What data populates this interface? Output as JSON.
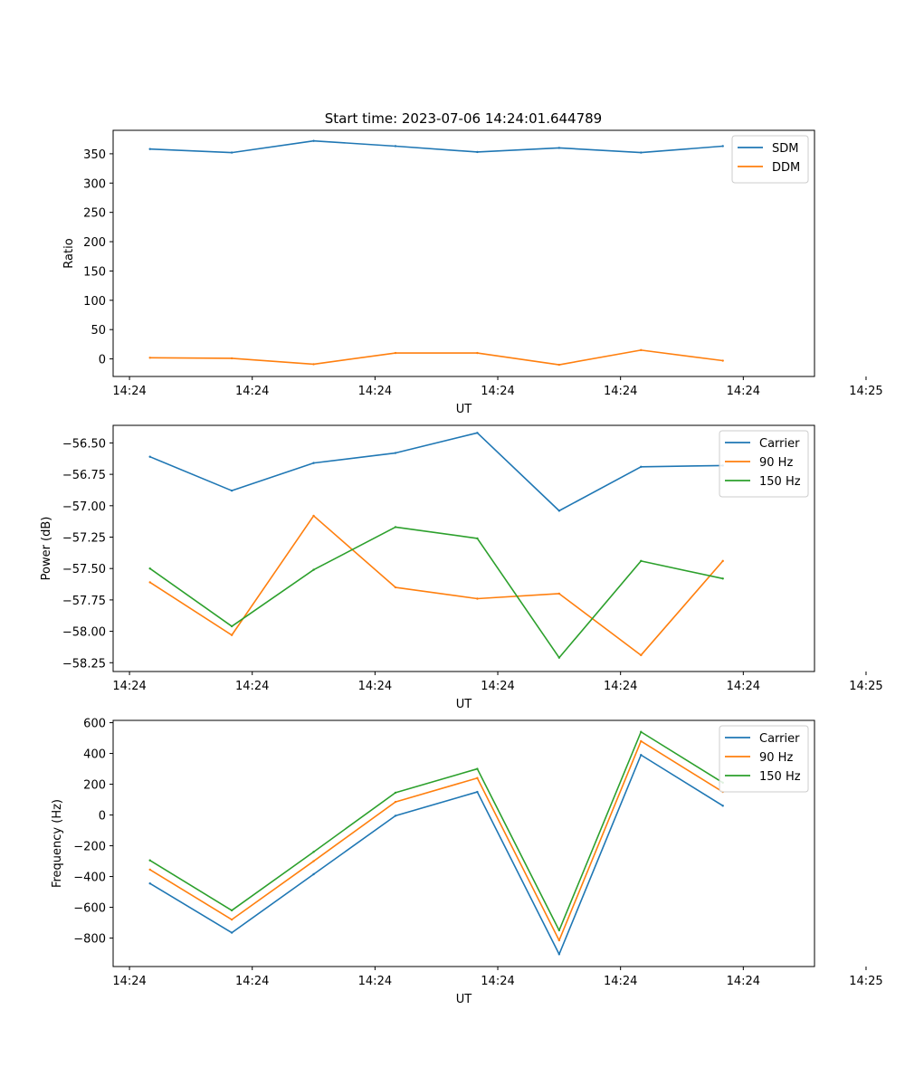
{
  "figure_title": "Start time: 2023-07-06 14:24:01.644789",
  "colors": {
    "blue": "#1f77b4",
    "orange": "#ff7f0e",
    "green": "#2ca02c"
  },
  "chart_data": [
    {
      "type": "line",
      "title": "Start time: 2023-07-06 14:24:01.644789",
      "xlabel": "UT",
      "ylabel": "Ratio",
      "x": [
        1,
        2,
        3,
        4,
        5,
        6,
        7,
        8
      ],
      "xlim": [
        0.55,
        9.12
      ],
      "xticks": [
        0.75,
        2.25,
        3.75,
        5.25,
        6.75,
        8.25,
        9.75
      ],
      "xtick_labels": [
        "14:24",
        "14:24",
        "14:24",
        "14:24",
        "14:24",
        "14:24",
        "14:25"
      ],
      "ylim": [
        -30,
        390
      ],
      "yticks": [
        0,
        50,
        100,
        150,
        200,
        250,
        300,
        350
      ],
      "ytick_labels": [
        "0",
        "50",
        "100",
        "150",
        "200",
        "250",
        "300",
        "350"
      ],
      "legend_position": "top-right",
      "series": [
        {
          "name": "SDM",
          "color": "#1f77b4",
          "values": [
            358,
            352,
            372,
            363,
            353,
            360,
            352,
            363
          ]
        },
        {
          "name": "DDM",
          "color": "#ff7f0e",
          "values": [
            2,
            1,
            -9,
            10,
            10,
            -10,
            15,
            -3
          ]
        }
      ]
    },
    {
      "type": "line",
      "title": "",
      "xlabel": "UT",
      "ylabel": "Power (dB)",
      "x": [
        1,
        2,
        3,
        4,
        5,
        6,
        7,
        8
      ],
      "xlim": [
        0.55,
        9.12
      ],
      "xticks": [
        0.75,
        2.25,
        3.75,
        5.25,
        6.75,
        8.25,
        9.75
      ],
      "xtick_labels": [
        "14:24",
        "14:24",
        "14:24",
        "14:24",
        "14:24",
        "14:24",
        "14:25"
      ],
      "ylim": [
        -58.32,
        -56.36
      ],
      "yticks": [
        -56.5,
        -56.75,
        -57.0,
        -57.25,
        -57.5,
        -57.75,
        -58.0,
        -58.25
      ],
      "ytick_labels": [
        "−56.50",
        "−56.75",
        "−57.00",
        "−57.25",
        "−57.50",
        "−57.75",
        "−58.00",
        "−58.25"
      ],
      "legend_position": "top-right",
      "series": [
        {
          "name": "Carrier",
          "color": "#1f77b4",
          "values": [
            -56.61,
            -56.88,
            -56.66,
            -56.58,
            -56.42,
            -57.04,
            -56.69,
            -56.68
          ]
        },
        {
          "name": "90 Hz",
          "color": "#ff7f0e",
          "values": [
            -57.61,
            -58.03,
            -57.08,
            -57.65,
            -57.74,
            -57.7,
            -58.19,
            -57.44
          ]
        },
        {
          "name": "150 Hz",
          "color": "#2ca02c",
          "values": [
            -57.5,
            -57.96,
            -57.51,
            -57.17,
            -57.26,
            -58.21,
            -57.44,
            -57.58
          ]
        }
      ]
    },
    {
      "type": "line",
      "title": "",
      "xlabel": "UT",
      "ylabel": "Frequency (Hz)",
      "x": [
        1,
        2,
        3,
        4,
        5,
        6,
        7,
        8
      ],
      "xlim": [
        0.55,
        9.12
      ],
      "xticks": [
        0.75,
        2.25,
        3.75,
        5.25,
        6.75,
        8.25,
        9.75
      ],
      "xtick_labels": [
        "14:24",
        "14:24",
        "14:24",
        "14:24",
        "14:24",
        "14:24",
        "14:25"
      ],
      "ylim": [
        -985,
        615
      ],
      "yticks": [
        600,
        400,
        200,
        0,
        -200,
        -400,
        -600,
        -800
      ],
      "ytick_labels": [
        "600",
        "400",
        "200",
        "0",
        "−200",
        "−400",
        "−600",
        "−800"
      ],
      "legend_position": "top-right",
      "series": [
        {
          "name": "Carrier",
          "color": "#1f77b4",
          "values": [
            -445,
            -765,
            -385,
            -5,
            150,
            -905,
            390,
            60
          ]
        },
        {
          "name": "90 Hz",
          "color": "#ff7f0e",
          "values": [
            -355,
            -680,
            -300,
            85,
            240,
            -815,
            480,
            150
          ]
        },
        {
          "name": "150 Hz",
          "color": "#2ca02c",
          "values": [
            -295,
            -620,
            -240,
            145,
            300,
            -750,
            540,
            210
          ]
        }
      ]
    }
  ]
}
